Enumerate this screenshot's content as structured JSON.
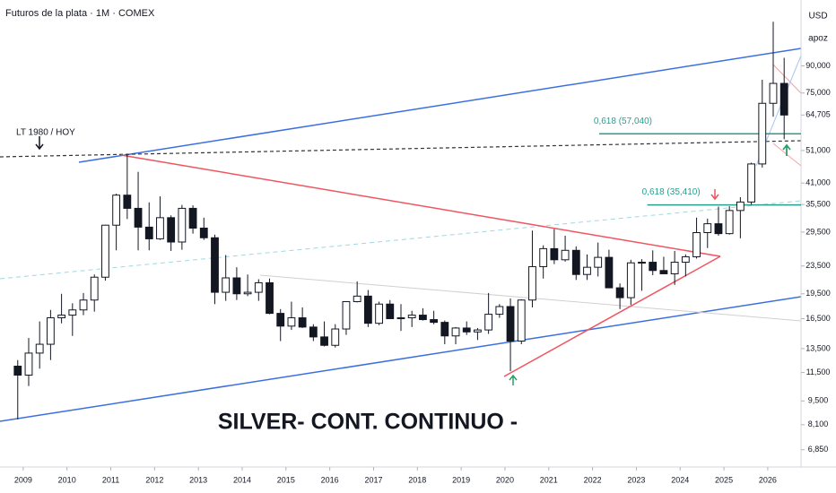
{
  "chart_data": {
    "type": "candlestick",
    "title": "Futuros de la plata · 1M · COMEX",
    "currency": "USD",
    "unit": "apoz",
    "watermark": "SILVER- CONT. CONTINUO -",
    "log_scale": true,
    "xlim": [
      2008.47,
      2026.76
    ],
    "xticks": [
      2009,
      2010,
      2011,
      2012,
      2013,
      2014,
      2015,
      2016,
      2017,
      2018,
      2019,
      2020,
      2021,
      2022,
      2023,
      2024,
      2025,
      2026
    ],
    "ylim": [
      6.1,
      140
    ],
    "yticks": [
      {
        "value": 6.85,
        "label": "6,850"
      },
      {
        "value": 8.1,
        "label": "8,100"
      },
      {
        "value": 9.5,
        "label": "9,500"
      },
      {
        "value": 11.5,
        "label": "11,500"
      },
      {
        "value": 13.5,
        "label": "13,500"
      },
      {
        "value": 16.5,
        "label": "16,500"
      },
      {
        "value": 19.5,
        "label": "19,500"
      },
      {
        "value": 23.5,
        "label": "23,500"
      },
      {
        "value": 29.5,
        "label": "29,500"
      },
      {
        "value": 35.5,
        "label": "35,500"
      },
      {
        "value": 41,
        "label": "41,000"
      },
      {
        "value": 51,
        "label": "51,000"
      },
      {
        "value": 64.705,
        "label": "64,705"
      },
      {
        "value": 75,
        "label": "75,000"
      },
      {
        "value": 90,
        "label": "90,000"
      }
    ],
    "up_color": "#ffffff",
    "down_color": "#131722",
    "edge_color": "#131722",
    "x": [
      2008.875,
      2009.125,
      2009.375,
      2009.625,
      2009.875,
      2010.125,
      2010.375,
      2010.625,
      2010.875,
      2011.125,
      2011.375,
      2011.625,
      2011.875,
      2012.125,
      2012.375,
      2012.625,
      2012.875,
      2013.125,
      2013.375,
      2013.625,
      2013.875,
      2014.125,
      2014.375,
      2014.625,
      2014.875,
      2015.125,
      2015.375,
      2015.625,
      2015.875,
      2016.125,
      2016.375,
      2016.625,
      2016.875,
      2017.125,
      2017.375,
      2017.625,
      2017.875,
      2018.125,
      2018.375,
      2018.625,
      2018.875,
      2019.125,
      2019.375,
      2019.625,
      2019.875,
      2020.125,
      2020.375,
      2020.625,
      2020.875,
      2021.125,
      2021.375,
      2021.625,
      2021.875,
      2022.125,
      2022.375,
      2022.625,
      2022.875,
      2023.125,
      2023.375,
      2023.625,
      2023.875,
      2024.125,
      2024.375,
      2024.625,
      2024.875,
      2025.125,
      2025.375,
      2025.625,
      2025.875,
      2026.125,
      2026.375
    ],
    "open": [
      12,
      11.3,
      13.1,
      13.9,
      16.6,
      16.9,
      17.5,
      18.7,
      21.8,
      30.9,
      37.8,
      34.6,
      30.5,
      28.2,
      32.5,
      27.6,
      34.6,
      30.3,
      28.4,
      19.7,
      21.7,
      19.5,
      19.7,
      21,
      17.1,
      15.7,
      16.6,
      15.6,
      14.6,
      13.8,
      15.4,
      18.5,
      19.2,
      16,
      18.2,
      16.5,
      16.6,
      16.9,
      16.4,
      16.1,
      14.7,
      15.5,
      15.1,
      15.3,
      17,
      17.9,
      14.2,
      18.7,
      23.4,
      26.4,
      24.5,
      26.1,
      22.2,
      23.3,
      24.9,
      20.3,
      19,
      24,
      24.1,
      22.8,
      22.3,
      24.1,
      25,
      29.4,
      31.2,
      29.2,
      34.1,
      36.1,
      46.6,
      70,
      80
    ],
    "high": [
      12.5,
      14.5,
      16.2,
      17.5,
      19.5,
      18.3,
      19.6,
      22.2,
      31,
      38.2,
      49.8,
      44.2,
      36,
      37.5,
      33,
      35.4,
      35.3,
      32.5,
      29,
      25.3,
      23.3,
      22.2,
      21.5,
      21.6,
      17.6,
      18.5,
      17.8,
      15.9,
      16.2,
      15.9,
      18.5,
      21.2,
      20,
      18.5,
      18.7,
      18.2,
      17.4,
      17.7,
      17.4,
      16.3,
      15.6,
      16.2,
      15.5,
      19.6,
      18.2,
      18.9,
      18.8,
      29.8,
      27,
      30.1,
      28.8,
      26.8,
      25.4,
      27.5,
      26.2,
      20.9,
      24.5,
      24.6,
      26.1,
      25,
      26,
      25.4,
      32.5,
      32.3,
      35,
      35.1,
      37.3,
      47,
      82,
      121,
      95
    ],
    "low": [
      8.4,
      10.5,
      11.8,
      12.5,
      16,
      14.7,
      16.9,
      17.3,
      21.3,
      26.1,
      32.2,
      26.1,
      26.1,
      28,
      26,
      26.2,
      29.2,
      28,
      18.2,
      18.6,
      18.7,
      19.2,
      18.6,
      17,
      14.2,
      15.3,
      15.5,
      14.2,
      13.7,
      13.6,
      14.8,
      18.4,
      15.6,
      15.8,
      16.5,
      15.2,
      15.6,
      16.3,
      15.9,
      13.9,
      13.9,
      14.8,
      14.3,
      14.9,
      16.6,
      11.6,
      13.9,
      17.8,
      21.6,
      23.8,
      24.2,
      21.4,
      21.4,
      21.9,
      20.4,
      17.6,
      18.1,
      19.9,
      22.1,
      22.3,
      20.7,
      21.9,
      24.7,
      26.5,
      28.8,
      29,
      28.3,
      35.5,
      45.5,
      64,
      55
    ],
    "close": [
      11.3,
      13.1,
      13.9,
      16.6,
      16.9,
      17.5,
      18.7,
      21.8,
      30.9,
      37.8,
      34.6,
      30.5,
      28.2,
      32.5,
      27.6,
      34.6,
      30.3,
      28.4,
      19.7,
      21.7,
      19.5,
      19.7,
      21,
      17.1,
      15.7,
      16.6,
      15.6,
      14.6,
      13.8,
      15.4,
      18.5,
      19.2,
      16,
      18.2,
      16.5,
      16.6,
      16.9,
      16.4,
      16.1,
      14.7,
      15.5,
      15.1,
      15.3,
      17,
      17.9,
      14.2,
      18.7,
      23.4,
      26.4,
      24.5,
      26.1,
      22.2,
      23.3,
      24.9,
      20.3,
      19,
      24,
      24.1,
      22.8,
      22.3,
      24.1,
      25,
      29.4,
      31.2,
      29.2,
      34.1,
      36.1,
      46.6,
      70,
      80,
      64.705
    ],
    "levels": [
      {
        "label": "0,618 (57,040)",
        "value": 57.04,
        "color": "#2a9d8f",
        "from": 2022.15
      },
      {
        "label": "0,618 (35,410)",
        "value": 35.41,
        "color": "#2a9d8f",
        "from": 2023.25
      }
    ],
    "annotation": "LT 1980 / HOY"
  }
}
